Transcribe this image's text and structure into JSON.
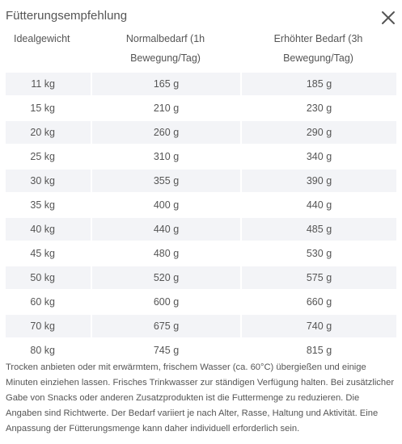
{
  "dialog": {
    "title": "Fütterungsempfehlung",
    "close_icon": "close-icon"
  },
  "table": {
    "headers": {
      "weight": "Idealgewicht",
      "normal": "Normalbedarf (1h Bewegung/Tag)",
      "high": "Erhöhter Bedarf (3h Bewegung/Tag)"
    },
    "rows": [
      {
        "weight": "11 kg",
        "normal": "165 g",
        "high": "185 g"
      },
      {
        "weight": "15 kg",
        "normal": "210 g",
        "high": "230 g"
      },
      {
        "weight": "20 kg",
        "normal": "260 g",
        "high": "290 g"
      },
      {
        "weight": "25 kg",
        "normal": "310 g",
        "high": "340 g"
      },
      {
        "weight": "30 kg",
        "normal": "355 g",
        "high": "390 g"
      },
      {
        "weight": "35 kg",
        "normal": "400 g",
        "high": "440 g"
      },
      {
        "weight": "40 kg",
        "normal": "440 g",
        "high": "485 g"
      },
      {
        "weight": "45 kg",
        "normal": "480 g",
        "high": "530 g"
      },
      {
        "weight": "50 kg",
        "normal": "520 g",
        "high": "575 g"
      },
      {
        "weight": "60 kg",
        "normal": "600 g",
        "high": "660 g"
      },
      {
        "weight": "70 kg",
        "normal": "675 g",
        "high": "740 g"
      },
      {
        "weight": "80 kg",
        "normal": "745 g",
        "high": "815 g"
      }
    ]
  },
  "note": "Trocken anbieten oder mit erwärmtem, frischem Wasser (ca. 60°C) übergießen und einige Minuten einziehen lassen. Frisches Trinkwasser zur ständigen Verfügung halten. Bei zusätzlicher Gabe von Snacks oder anderen Zusatzprodukten ist die Futtermenge zu reduzieren. Die Angaben sind Richtwerte. Der Bedarf variiert je nach Alter, Rasse, Haltung und Aktivität. Eine Anpassung der Fütterungsmenge kann daher individuell erforderlich sein."
}
